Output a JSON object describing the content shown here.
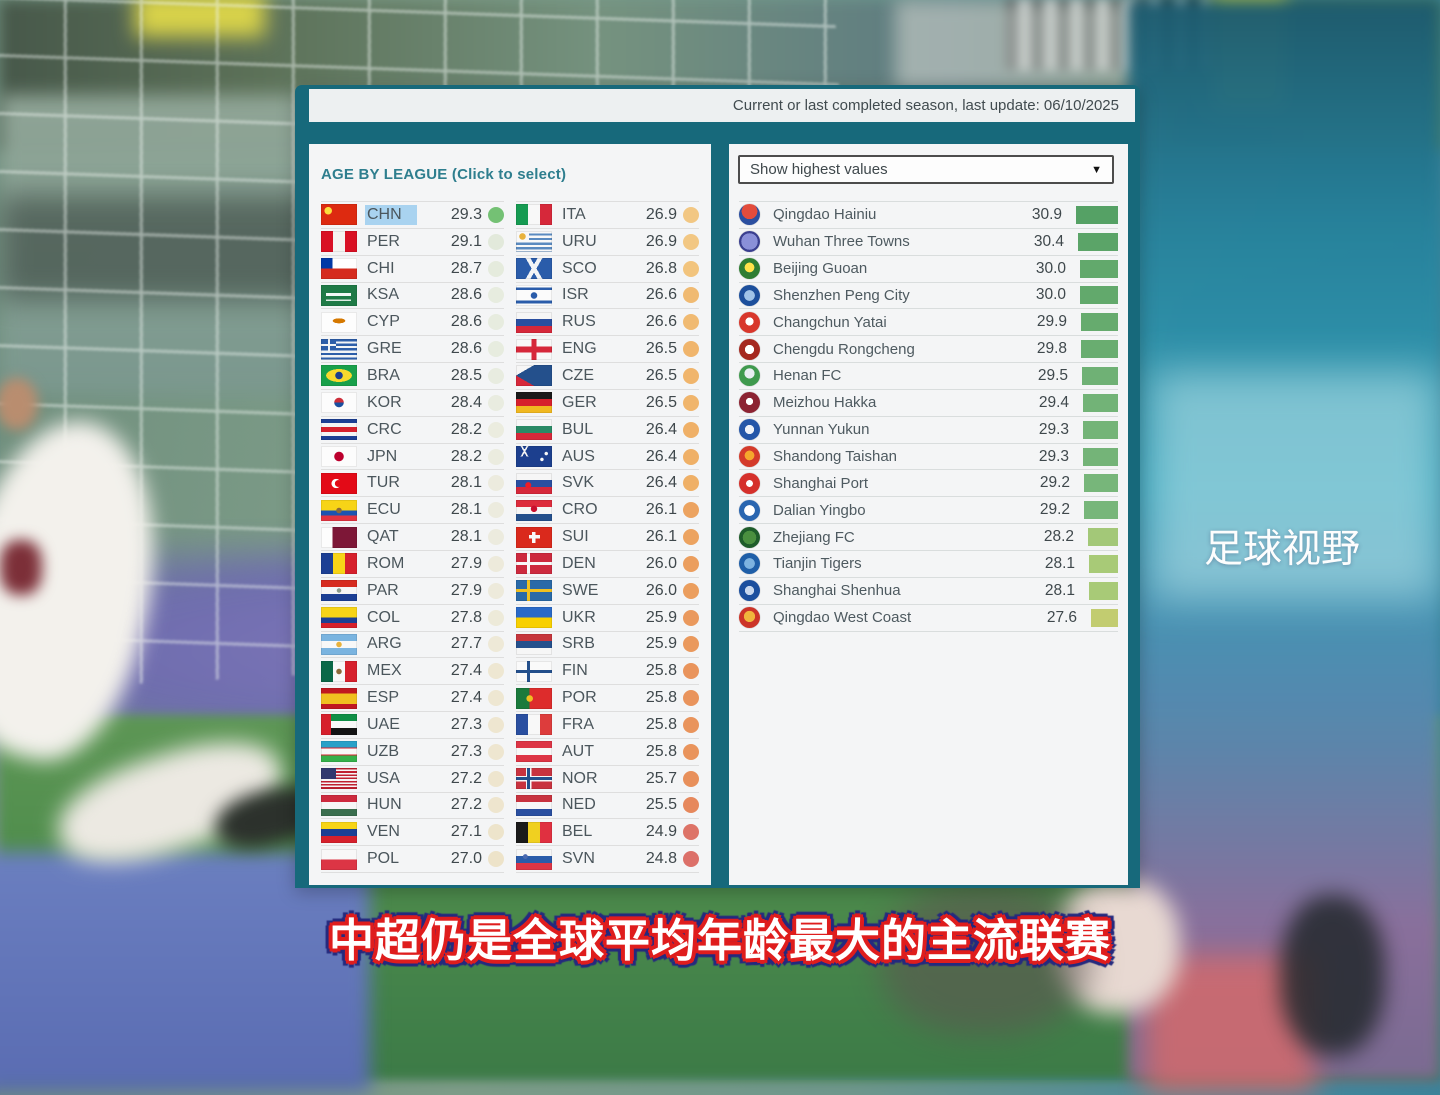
{
  "colors": {
    "frame_teal": "#17697b",
    "panel_bg": "#f4f5f6",
    "selected_highlight": "#a9d3f0",
    "title_teal": "#2e7e8e"
  },
  "header": {
    "update_text": "Current or last completed season, last update: 06/10/2025"
  },
  "left_panel": {
    "title": "AGE BY LEAGUE (Click to select)",
    "columns": [
      [
        {
          "code": "CHN",
          "value": "29.3",
          "selected": true,
          "dot": "#74c174",
          "flag": "radial-gradient(circle at 20% 32%,#fbde3c 0 3.5px,rgba(0,0,0,0) 4px),linear-gradient(#dd2a10,#dd2a10)"
        },
        {
          "code": "PER",
          "value": "29.1",
          "dot": "#e2e9db",
          "flag": "linear-gradient(90deg,#d91023 0 33%,#f5f3f0 33% 67%,#d91023 67%)"
        },
        {
          "code": "CHI",
          "value": "28.7",
          "dot": "#e5ebdd",
          "flag": "linear-gradient(90deg,#0039a6 0 32%,rgba(0,0,0,0) 32%) 0 0/100% 50% no-repeat,linear-gradient(180deg,#fff 0 50%,#d52b1e 50%)"
        },
        {
          "code": "KSA",
          "value": "28.6",
          "dot": "#e7ecdf",
          "flag": "linear-gradient(180deg,rgba(0,0,0,0) 0 38%,rgba(255,255,255,.95) 38% 52%,rgba(0,0,0,0) 52% 68%,rgba(255,255,255,.85) 68% 76%,rgba(0,0,0,0) 76%) 50% 50%/70% 100% no-repeat,linear-gradient(#1f7a46,#1f7a46)"
        },
        {
          "code": "CYP",
          "value": "28.6",
          "dot": "#e7ecdf",
          "flag": "radial-gradient(ellipse 10px 4px at 50% 42%,#d57800 60%,rgba(0,0,0,0) 65%),linear-gradient(#fdfdfd,#fdfdfd)"
        },
        {
          "code": "GRE",
          "value": "28.6",
          "dot": "#e7ecdf",
          "flag": "linear-gradient(#f2f4f6,#f2f4f6) 0 5px/15px 2px no-repeat,linear-gradient(#f2f4f6,#f2f4f6) 6.5px 0/2px 11.5px no-repeat,linear-gradient(#2d5ea9,#2d5ea9) 0 0/15px 11.5px no-repeat,repeating-linear-gradient(180deg,#2d5ea9 0 2.3px,#f2f4f6 2.3px 4.6px)"
        },
        {
          "code": "BRA",
          "value": "28.5",
          "dot": "#e8ece0",
          "flag": "radial-gradient(circle at 50% 50%,#1b3e8e 0 3.5px,rgba(0,0,0,0) 4px),radial-gradient(ellipse 13px 6.5px at 50% 50%,#f8d92c 98%,rgba(0,0,0,0) 100%),linear-gradient(#18a04a,#18a04a)"
        },
        {
          "code": "KOR",
          "value": "28.4",
          "dot": "#e9ece0",
          "flag": "radial-gradient(circle at 50% 50%,rgba(0,0,0,0) 0 4.5px,#fcfcfc 5px),linear-gradient(180deg,#cd2e3a 0 50%,#1a4fa0 50%)"
        },
        {
          "code": "CRC",
          "value": "28.2",
          "dot": "#ebecdf",
          "flag": "linear-gradient(180deg,#1c3f94 0 18%,#f4f4f4 18% 38%,#d6202c 38% 62%,#f4f4f4 62% 82%,#1c3f94 82%)"
        },
        {
          "code": "JPN",
          "value": "28.2",
          "dot": "#ebecdf",
          "flag": "radial-gradient(circle at 50% 50%,rgba(0,0,0,0) 0 4.5px,#fcfcfc 5px),linear-gradient(#bc002d,#bc002d)"
        },
        {
          "code": "TUR",
          "value": "28.1",
          "dot": "#ecebde",
          "flag": "radial-gradient(circle at 48% 50%,#e30a17 0 3.2px,rgba(0,0,0,0) 3.6px),radial-gradient(circle at 42% 50%,#fff 0 4.4px,rgba(0,0,0,0) 4.8px),linear-gradient(#e30a17,#e30a17)"
        },
        {
          "code": "ECU",
          "value": "28.1",
          "dot": "#ecebde",
          "flag": "radial-gradient(circle at 50% 50%,#8c6a39 0 2.5px,rgba(0,0,0,0) 3px),linear-gradient(180deg,#f7d417 0 50%,#1c54b0 50% 75%,#e33340 75%)"
        },
        {
          "code": "QAT",
          "value": "28.1",
          "dot": "#ecebde",
          "flag": "linear-gradient(90deg,#fdfdfd 0 32%,#7d1737 32%)"
        },
        {
          "code": "ROM",
          "value": "27.9",
          "dot": "#edeadb",
          "flag": "linear-gradient(90deg,#1c3f94 0 33%,#f7d417 33% 67%,#d6202c 67%)"
        },
        {
          "code": "PAR",
          "value": "27.9",
          "dot": "#edeadb",
          "flag": "radial-gradient(circle at 50% 50%,#8a9a8a 0 2px,rgba(0,0,0,0) 2.5px),linear-gradient(180deg,#d62b1f 0 33%,#f6f6f6 33% 67%,#1c3f94 67%)"
        },
        {
          "code": "COL",
          "value": "27.8",
          "dot": "#edead9",
          "flag": "linear-gradient(180deg,#f7d417 0 50%,#1c3f94 50% 75%,#d6202c 75%)"
        },
        {
          "code": "ARG",
          "value": "27.7",
          "dot": "#eee9d7",
          "flag": "radial-gradient(circle at 50% 50%,#e8b23c 0 2.5px,rgba(0,0,0,0) 3px),linear-gradient(180deg,#7ab4e0 0 33%,#f8f8f8 33% 67%,#7ab4e0 67%)"
        },
        {
          "code": "MEX",
          "value": "27.4",
          "dot": "#eee7d2",
          "flag": "radial-gradient(circle at 50% 50%,#8c6a39 0 2.5px,rgba(0,0,0,0) 3px),linear-gradient(90deg,#0a6847 0 33%,#f8f8f8 33% 67%,#d6202c 67%)"
        },
        {
          "code": "ESP",
          "value": "27.4",
          "dot": "#eee7d2",
          "flag": "linear-gradient(180deg,#c01820 0 25%,#f0c020 25% 75%,#c01820 75%)"
        },
        {
          "code": "UAE",
          "value": "27.3",
          "dot": "#eee6d0",
          "flag": "linear-gradient(90deg,#d6202c 0 28%,rgba(0,0,0,0) 28%),linear-gradient(180deg,#108f46 0 33%,#f8f8f8 33% 67%,#141414 67%)"
        },
        {
          "code": "UZB",
          "value": "27.3",
          "dot": "#eee6d0",
          "flag": "linear-gradient(180deg,#2aa0c8 0 30%,#d6202c 30% 36%,#f8f8f8 36% 64%,#d6202c 64% 70%,#35b04a 70%)"
        },
        {
          "code": "USA",
          "value": "27.2",
          "dot": "#eee5ce",
          "flag": "linear-gradient(#31386e,#31386e) 0 0/15px 11px no-repeat,repeating-linear-gradient(180deg,#c02030 0 1.6px,#f6f6f6 1.6px 3.2px)"
        },
        {
          "code": "HUN",
          "value": "27.2",
          "dot": "#eee5ce",
          "flag": "linear-gradient(180deg,#cd2a3e 0 33%,#f6f6f6 33% 67%,#3a6e4e 67%)"
        },
        {
          "code": "VEN",
          "value": "27.1",
          "dot": "#ede4cb",
          "flag": "linear-gradient(180deg,#f7d417 0 33%,#1c3f94 33% 67%,#d6202c 67%)"
        },
        {
          "code": "POL",
          "value": "27.0",
          "dot": "#ede3c9",
          "flag": "linear-gradient(180deg,#f8f8f8 0 50%,#dc3545 50%)"
        }
      ],
      [
        {
          "code": "ITA",
          "value": "26.9",
          "dot": "#f2c783",
          "flag": "linear-gradient(90deg,#169b52 0 33%,#f8f8f8 33% 67%,#d6283a 67%)"
        },
        {
          "code": "URU",
          "value": "26.9",
          "dot": "#f2c783",
          "flag": "radial-gradient(circle at 18% 26%,#e8b23c 0 3px,rgba(0,0,0,0) 3.5px),linear-gradient(#f8f8f8,#f8f8f8) 0 0/13px 10.5px no-repeat,repeating-linear-gradient(180deg,#f8f8f8 0 2.3px,#5a8ac0 2.3px 4.6px)"
        },
        {
          "code": "SCO",
          "value": "26.8",
          "dot": "#f2c47d",
          "flag": "linear-gradient(60deg,rgba(0,0,0,0) 0 45%,#f2f4f6 45% 55%,rgba(0,0,0,0) 55%),linear-gradient(-60deg,rgba(0,0,0,0) 0 45%,#f2f4f6 45% 55%,rgba(0,0,0,0) 55%),linear-gradient(#2a5caa,#2a5caa)"
        },
        {
          "code": "ISR",
          "value": "26.6",
          "dot": "#f0ba72",
          "flag": "linear-gradient(180deg,rgba(0,0,0,0) 0 12%,#2a5caa 12% 25%,rgba(0,0,0,0) 25% 75%,#2a5caa 75% 88%,rgba(0,0,0,0) 88%),radial-gradient(circle at 50% 50%,#2a5caa 0 3px,rgba(0,0,0,0) 3.5px),linear-gradient(#fbfbfb,#fbfbfb)"
        },
        {
          "code": "RUS",
          "value": "26.6",
          "dot": "#f0ba72",
          "flag": "linear-gradient(180deg,#f6f6f6 0 33%,#2a4fa0 33% 67%,#d6283a 67%)"
        },
        {
          "code": "ENG",
          "value": "26.5",
          "dot": "#f0b56c",
          "flag": "linear-gradient(90deg,rgba(0,0,0,0) 0 43%,#d6283a 43% 57%,rgba(0,0,0,0) 57%),linear-gradient(180deg,rgba(0,0,0,0) 0 36%,#d6283a 36% 64%,rgba(0,0,0,0) 64%),linear-gradient(#f8f8f8,#f8f8f8)"
        },
        {
          "code": "CZE",
          "value": "26.5",
          "dot": "#f0b56c",
          "flag": "conic-gradient(from 60deg at 0% 50%,#24508c 0 60deg,rgba(0,0,0,0) 60deg),linear-gradient(180deg,#f6f6f6 0 50%,#d6283a 50%)"
        },
        {
          "code": "GER",
          "value": "26.5",
          "dot": "#f0b56c",
          "flag": "linear-gradient(180deg,#1a1a1a 0 33%,#d6202c 33% 67%,#f0b820 67%)"
        },
        {
          "code": "BUL",
          "value": "26.4",
          "dot": "#efb067",
          "flag": "linear-gradient(180deg,#f6f6f6 0 33%,#2a8a66 33% 67%,#d6283a 67%)"
        },
        {
          "code": "AUS",
          "value": "26.4",
          "dot": "#efb067",
          "flag": "radial-gradient(circle at 72% 64%,#f8f8f8 0 1.5px,rgba(0,0,0,0) 2px),radial-gradient(circle at 84% 36%,#f8f8f8 0 1.5px,rgba(0,0,0,0) 2px),linear-gradient(60deg,rgba(0,0,0,0) 0 46%,#f2f2f2 46% 54%,rgba(0,0,0,0) 54%) 0 0/17px 10.5px no-repeat,linear-gradient(-60deg,rgba(0,0,0,0) 0 46%,#f2f2f2 46% 54%,rgba(0,0,0,0) 54%) 0 0/17px 10.5px no-repeat,linear-gradient(#1c3f8e,#1c3f8e)"
        },
        {
          "code": "SVK",
          "value": "26.4",
          "dot": "#efb067",
          "flag": "radial-gradient(circle at 34% 58%,#ee1c25 0 2.8px,rgba(0,0,0,0) 3.2px),linear-gradient(180deg,#f6f6f6 0 33%,#2a4fa0 33% 67%,#d6283a 67%)"
        },
        {
          "code": "CRO",
          "value": "26.1",
          "dot": "#eca360",
          "flag": "radial-gradient(circle at 50% 42%,#c8102e 0 3px,rgba(0,0,0,0) 3.4px),linear-gradient(180deg,#dd2c3c 0 33%,#f6f6f6 33% 67%,#24508c 67%)"
        },
        {
          "code": "SUI",
          "value": "26.1",
          "dot": "#eca360",
          "flag": "linear-gradient(#f8f8f8,#f8f8f8) 50% 50%/11px 3.5px no-repeat,linear-gradient(#f8f8f8,#f8f8f8) 50% 50%/3.5px 11px no-repeat,linear-gradient(#da291c,#da291c)"
        },
        {
          "code": "DEN",
          "value": "26.0",
          "dot": "#eb9e5e",
          "flag": "linear-gradient(#f8f8f8,#f8f8f8) 0 50%/100% 3.2px no-repeat,linear-gradient(#f8f8f8,#f8f8f8) 11px 0/3.2px 100% no-repeat,linear-gradient(#cd2a3e,#cd2a3e)"
        },
        {
          "code": "SWE",
          "value": "26.0",
          "dot": "#eb9e5e",
          "flag": "linear-gradient(#f0c020,#f0c020) 0 50%/100% 3.2px no-repeat,linear-gradient(#f0c020,#f0c020) 11px 0/3.2px 100% no-repeat,linear-gradient(#2a6aa8,#2a6aa8)"
        },
        {
          "code": "UKR",
          "value": "25.9",
          "dot": "#ea995d",
          "flag": "linear-gradient(180deg,#2a6ac8 0 50%,#f8d000 50%)"
        },
        {
          "code": "SRB",
          "value": "25.9",
          "dot": "#ea995d",
          "flag": "linear-gradient(180deg,#c6363c 0 33%,#24508c 33% 67%,#f6f6f6 67%)"
        },
        {
          "code": "FIN",
          "value": "25.8",
          "dot": "#e9945c",
          "flag": "linear-gradient(#24508c,#24508c) 0 50%/100% 3.4px no-repeat,linear-gradient(#24508c,#24508c) 11px 0/3.4px 100% no-repeat,linear-gradient(#fafafa,#fafafa)"
        },
        {
          "code": "POR",
          "value": "25.8",
          "dot": "#e9945c",
          "flag": "radial-gradient(circle at 38% 50%,#f0c020 0 3px,rgba(0,0,0,0) 3.5px),linear-gradient(90deg,#1a7a3c 0 38%,#dd2c2c 38%)"
        },
        {
          "code": "FRA",
          "value": "25.8",
          "dot": "#e9945c",
          "flag": "linear-gradient(90deg,#2a4fa0 0 33%,#f8f8f8 33% 67%,#dd3c3c 67%)"
        },
        {
          "code": "AUT",
          "value": "25.8",
          "dot": "#e9945c",
          "flag": "linear-gradient(180deg,#dd3545 0 33%,#f8f8f8 33% 67%,#dd3545 67%)"
        },
        {
          "code": "NOR",
          "value": "25.7",
          "dot": "#e8905b",
          "flag": "linear-gradient(#24508c,#24508c) 0 50%/100% 3px no-repeat,linear-gradient(#24508c,#24508c) 11px 0/3px 100% no-repeat,linear-gradient(#f8f8f8,#f8f8f8) 0 50%/100% 5.5px no-repeat,linear-gradient(#f8f8f8,#f8f8f8) 9.8px 0/5.5px 100% no-repeat,linear-gradient(#c8333f,#c8333f)"
        },
        {
          "code": "NED",
          "value": "25.5",
          "dot": "#e6885c",
          "flag": "linear-gradient(180deg,#c8333f 0 33%,#f8f8f8 33% 67%,#2a4fa0 67%)"
        },
        {
          "code": "BEL",
          "value": "24.9",
          "dot": "#dd7367",
          "flag": "linear-gradient(90deg,#1a1a1a 0 33%,#f0d020 33% 67%,#e03040 67%)"
        },
        {
          "code": "SVN",
          "value": "24.8",
          "dot": "#dc7069",
          "flag": "radial-gradient(circle at 26% 36%,#4a6ab0 0 2.2px,rgba(0,0,0,0) 2.6px),linear-gradient(180deg,#f6f6f6 0 33%,#2a5caa 33% 67%,#dd3545 67%)"
        }
      ]
    ]
  },
  "right_panel": {
    "dropdown_label": "Show highest values",
    "dropdown_arrow": "▼",
    "clubs": [
      {
        "name": "Qingdao Hainiu",
        "value": "30.9",
        "bar": "#55a165",
        "logo": "radial-gradient(circle at 50% 35%,#e34c3c 0 45%,#2b4fa0 46%)"
      },
      {
        "name": "Wuhan Three Towns",
        "value": "30.4",
        "bar": "#5ba468",
        "logo": "radial-gradient(circle at 50% 50%,#8a90d8 0 55%,#3a3f8f 56%)"
      },
      {
        "name": "Beijing Guoan",
        "value": "30.0",
        "bar": "#62a96c",
        "logo": "radial-gradient(circle at 50% 45%,#ffe24a 0 30%,#2e7d32 32%)"
      },
      {
        "name": "Shenzhen Peng City",
        "value": "30.0",
        "bar": "#62a96c",
        "logo": "radial-gradient(circle at 50% 50%,#9fc3e8 0 35%,#1c4f9c 37%)"
      },
      {
        "name": "Changchun Yatai",
        "value": "29.9",
        "bar": "#66ab6e",
        "logo": "radial-gradient(circle at 50% 45%,#ffffff 0 25%,#d8372c 27%)"
      },
      {
        "name": "Chengdu Rongcheng",
        "value": "29.8",
        "bar": "#69ad70",
        "logo": "radial-gradient(circle at 50% 50%,#ffffff 0 30%,#a5281f 32%)"
      },
      {
        "name": "Henan FC",
        "value": "29.5",
        "bar": "#6fb175",
        "logo": "radial-gradient(circle at 50% 40%,#e8eef2 0 30%,#3f9a4e 32%)"
      },
      {
        "name": "Meizhou Hakka",
        "value": "29.4",
        "bar": "#72b377",
        "logo": "radial-gradient(circle at 50% 45%,#ffffff 0 22%,#8c2332 24%)"
      },
      {
        "name": "Yunnan Yukun",
        "value": "29.3",
        "bar": "#74b478",
        "logo": "radial-gradient(circle at 50% 50%,#eef2f8 0 30%,#2456a8 32%)"
      },
      {
        "name": "Shandong Taishan",
        "value": "29.3",
        "bar": "#74b478",
        "logo": "radial-gradient(circle at 50% 45%,#f5a72c 0 30%,#d43a2a 32%)"
      },
      {
        "name": "Shanghai Port",
        "value": "29.2",
        "bar": "#77b67a",
        "logo": "radial-gradient(circle at 50% 50%,#ffffff 0 22%,#d5302b 24%)"
      },
      {
        "name": "Dalian Yingbo",
        "value": "29.2",
        "bar": "#77b67a",
        "logo": "radial-gradient(circle at 50% 50%,#ffffff 0 35%,#2a66b0 37%)"
      },
      {
        "name": "Zhejiang FC",
        "value": "28.2",
        "bar": "#a3c878",
        "logo": "radial-gradient(circle at 50% 50%,#4a8f3f 0 45%,#1e5c2a 46%)"
      },
      {
        "name": "Tianjin Tigers",
        "value": "28.1",
        "bar": "#a8ca77",
        "logo": "radial-gradient(circle at 50% 50%,#7db3e0 0 35%,#1f5fa8 37%)"
      },
      {
        "name": "Shanghai Shenhua",
        "value": "28.1",
        "bar": "#a8ca77",
        "logo": "radial-gradient(circle at 50% 50%,#c8d8ee 0 30%,#1b4f9e 32%)"
      },
      {
        "name": "Qingdao West Coast",
        "value": "27.6",
        "bar": "#c2cc70",
        "logo": "radial-gradient(circle at 50% 45%,#f0b63c 0 35%,#cc3428 37%)"
      }
    ]
  },
  "overlay": {
    "watermark": "足球视野",
    "caption": "中超仍是全球平均年龄最大的主流联赛"
  },
  "chart_data": [
    {
      "type": "table",
      "title": "AGE BY LEAGUE (Click to select)",
      "note": "Average squad age by league; dot color scale green (older) → cream → orange → red (younger); CHN selected/highlighted",
      "categories": [
        "CHN",
        "PER",
        "CHI",
        "KSA",
        "CYP",
        "GRE",
        "BRA",
        "KOR",
        "CRC",
        "JPN",
        "TUR",
        "ECU",
        "QAT",
        "ROM",
        "PAR",
        "COL",
        "ARG",
        "MEX",
        "ESP",
        "UAE",
        "UZB",
        "USA",
        "HUN",
        "VEN",
        "POL",
        "ITA",
        "URU",
        "SCO",
        "ISR",
        "RUS",
        "ENG",
        "CZE",
        "GER",
        "BUL",
        "AUS",
        "SVK",
        "CRO",
        "SUI",
        "DEN",
        "SWE",
        "UKR",
        "SRB",
        "FIN",
        "POR",
        "FRA",
        "AUT",
        "NOR",
        "NED",
        "BEL",
        "SVN"
      ],
      "values": [
        29.3,
        29.1,
        28.7,
        28.6,
        28.6,
        28.6,
        28.5,
        28.4,
        28.2,
        28.2,
        28.1,
        28.1,
        28.1,
        27.9,
        27.9,
        27.8,
        27.7,
        27.4,
        27.4,
        27.3,
        27.3,
        27.2,
        27.2,
        27.1,
        27.0,
        26.9,
        26.9,
        26.8,
        26.6,
        26.6,
        26.5,
        26.5,
        26.5,
        26.4,
        26.4,
        26.4,
        26.1,
        26.1,
        26.0,
        26.0,
        25.9,
        25.9,
        25.8,
        25.8,
        25.8,
        25.8,
        25.7,
        25.5,
        24.9,
        24.8
      ],
      "selected": "CHN"
    },
    {
      "type": "bar",
      "title": "Show highest values",
      "note": "Chinese Super League clubs, average age; horizontal bars colored dark green (oldest) → yellow-green (youngest)",
      "orientation": "horizontal",
      "categories": [
        "Qingdao Hainiu",
        "Wuhan Three Towns",
        "Beijing Guoan",
        "Shenzhen Peng City",
        "Changchun Yatai",
        "Chengdu Rongcheng",
        "Henan FC",
        "Meizhou Hakka",
        "Yunnan Yukun",
        "Shandong Taishan",
        "Shanghai Port",
        "Dalian Yingbo",
        "Zhejiang FC",
        "Tianjin Tigers",
        "Shanghai Shenhua",
        "Qingdao West Coast"
      ],
      "values": [
        30.9,
        30.4,
        30.0,
        30.0,
        29.9,
        29.8,
        29.5,
        29.4,
        29.3,
        29.3,
        29.2,
        29.2,
        28.2,
        28.1,
        28.1,
        27.6
      ],
      "xlim": [
        21.7,
        31.0
      ]
    }
  ]
}
